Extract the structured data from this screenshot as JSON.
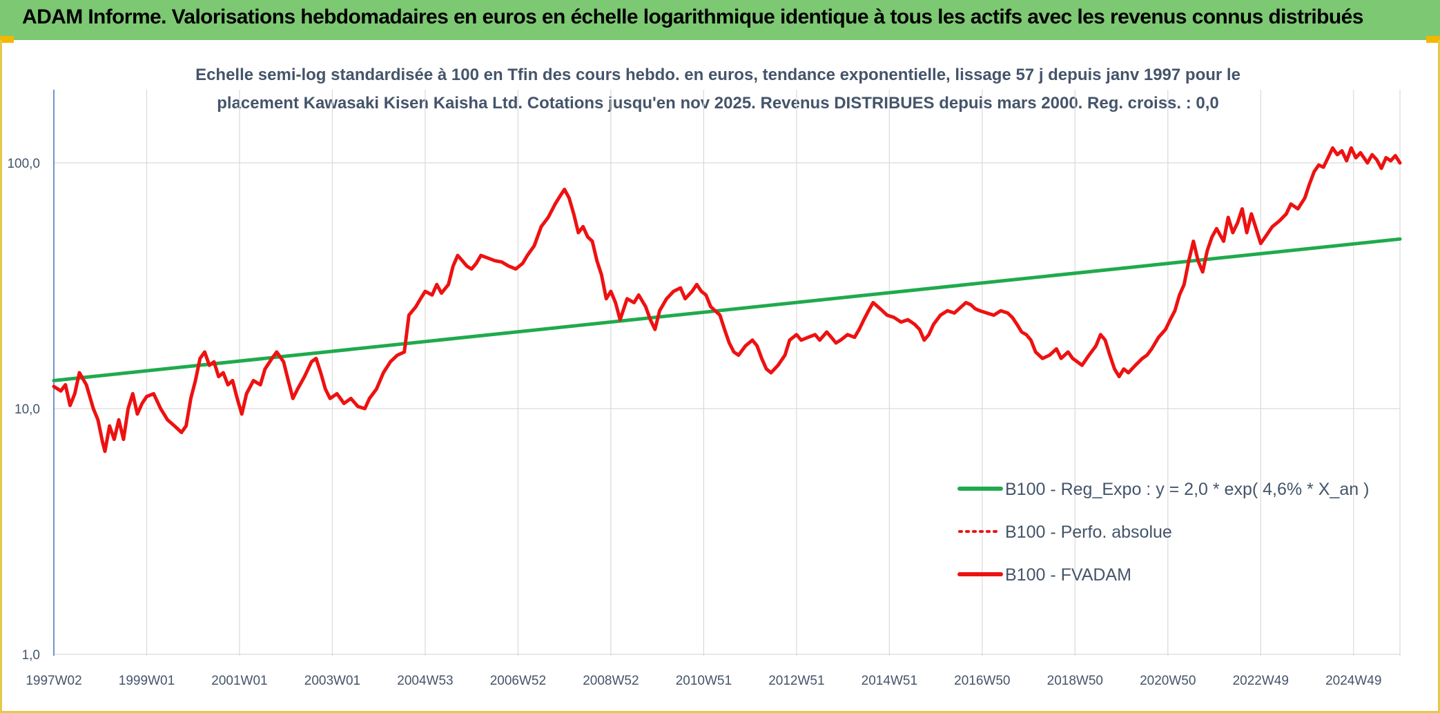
{
  "header": {
    "title": "ADAM Informe. Valorisations hebdomadaires en euros en échelle logarithmique identique à tous les actifs avec les revenus connus distribués"
  },
  "colors": {
    "banner": "#7dc873",
    "frame": "#e6c94a",
    "regression": "#1faa4d",
    "perf": "#ee1111",
    "grid": "#d9d9d9",
    "text": "#44546a"
  },
  "chart_data": {
    "type": "line",
    "title": "Echelle semi-log standardisée à 100 en Tfin des cours hebdo. en euros, tendance exponentielle, lissage 57 j depuis janv 1997 pour le",
    "subtitle": "placement Kawasaki Kisen Kaisha Ltd. Cotations jusqu'en nov 2025. Revenus DISTRIBUES depuis mars 2000. Reg. croiss. : 0,0",
    "y_scale": "log",
    "ylim": [
      1,
      200
    ],
    "xlim": [
      1997.0,
      2026.0
    ],
    "y_ticks": [
      {
        "value": 1,
        "label": "1,0"
      },
      {
        "value": 10,
        "label": "10,0"
      },
      {
        "value": 100,
        "label": "100,0"
      }
    ],
    "x_ticks": [
      {
        "value": 1997.0,
        "label": "1997W02"
      },
      {
        "value": 1999.0,
        "label": "1999W01"
      },
      {
        "value": 2001.0,
        "label": "2001W01"
      },
      {
        "value": 2003.0,
        "label": "2003W01"
      },
      {
        "value": 2005.0,
        "label": "2004W53"
      },
      {
        "value": 2007.0,
        "label": "2006W52"
      },
      {
        "value": 2009.0,
        "label": "2008W52"
      },
      {
        "value": 2011.0,
        "label": "2010W51"
      },
      {
        "value": 2013.0,
        "label": "2012W51"
      },
      {
        "value": 2015.0,
        "label": "2014W51"
      },
      {
        "value": 2017.0,
        "label": "2016W50"
      },
      {
        "value": 2019.0,
        "label": "2018W50"
      },
      {
        "value": 2021.0,
        "label": "2020W50"
      },
      {
        "value": 2023.0,
        "label": "2022W49"
      },
      {
        "value": 2025.0,
        "label": "2024W49"
      }
    ],
    "grid": true,
    "legend_position": "bottom-right",
    "series": [
      {
        "name": "B100 - Reg_Expo : y = 2,0 * exp( 4,6% *  X_an )",
        "color": "#1faa4d",
        "style": "solid",
        "points": [
          [
            1997.0,
            13.0
          ],
          [
            2026.0,
            49.0
          ]
        ]
      },
      {
        "name": "B100 - Perfo. absolue",
        "color": "#ee1111",
        "style": "dotted",
        "points": []
      },
      {
        "name": "B100 - FVADAM",
        "color": "#ee1111",
        "style": "solid",
        "points": [
          [
            1997.0,
            12.3
          ],
          [
            1997.15,
            11.8
          ],
          [
            1997.25,
            12.5
          ],
          [
            1997.35,
            10.3
          ],
          [
            1997.45,
            11.5
          ],
          [
            1997.55,
            14.0
          ],
          [
            1997.7,
            12.5
          ],
          [
            1997.85,
            10.0
          ],
          [
            1997.95,
            9.0
          ],
          [
            1998.05,
            7.3
          ],
          [
            1998.1,
            6.7
          ],
          [
            1998.2,
            8.5
          ],
          [
            1998.3,
            7.5
          ],
          [
            1998.4,
            9.0
          ],
          [
            1998.5,
            7.5
          ],
          [
            1998.6,
            10.0
          ],
          [
            1998.7,
            11.5
          ],
          [
            1998.8,
            9.5
          ],
          [
            1998.9,
            10.5
          ],
          [
            1999.0,
            11.2
          ],
          [
            1999.15,
            11.5
          ],
          [
            1999.3,
            10.0
          ],
          [
            1999.45,
            9.0
          ],
          [
            1999.6,
            8.5
          ],
          [
            1999.75,
            8.0
          ],
          [
            1999.85,
            8.5
          ],
          [
            1999.95,
            11.0
          ],
          [
            2000.05,
            13.0
          ],
          [
            2000.15,
            16.0
          ],
          [
            2000.25,
            17.0
          ],
          [
            2000.35,
            15.0
          ],
          [
            2000.45,
            15.5
          ],
          [
            2000.55,
            13.5
          ],
          [
            2000.65,
            14.0
          ],
          [
            2000.75,
            12.5
          ],
          [
            2000.85,
            13.0
          ],
          [
            2000.95,
            11.0
          ],
          [
            2001.05,
            9.5
          ],
          [
            2001.15,
            11.5
          ],
          [
            2001.3,
            13.0
          ],
          [
            2001.45,
            12.5
          ],
          [
            2001.55,
            14.5
          ],
          [
            2001.7,
            16.0
          ],
          [
            2001.8,
            17.0
          ],
          [
            2001.95,
            15.5
          ],
          [
            2002.05,
            13.0
          ],
          [
            2002.15,
            11.0
          ],
          [
            2002.25,
            12.0
          ],
          [
            2002.4,
            13.5
          ],
          [
            2002.55,
            15.5
          ],
          [
            2002.65,
            16.0
          ],
          [
            2002.75,
            14.0
          ],
          [
            2002.85,
            12.0
          ],
          [
            2002.95,
            11.0
          ],
          [
            2003.1,
            11.5
          ],
          [
            2003.25,
            10.5
          ],
          [
            2003.4,
            11.0
          ],
          [
            2003.55,
            10.2
          ],
          [
            2003.7,
            10.0
          ],
          [
            2003.8,
            11.0
          ],
          [
            2003.95,
            12.0
          ],
          [
            2004.1,
            14.0
          ],
          [
            2004.25,
            15.5
          ],
          [
            2004.4,
            16.5
          ],
          [
            2004.55,
            17.0
          ],
          [
            2004.65,
            24.0
          ],
          [
            2004.8,
            26.0
          ],
          [
            2004.9,
            28.0
          ],
          [
            2005.0,
            30.0
          ],
          [
            2005.15,
            29.0
          ],
          [
            2005.25,
            32.0
          ],
          [
            2005.35,
            29.5
          ],
          [
            2005.5,
            32.0
          ],
          [
            2005.6,
            38.0
          ],
          [
            2005.7,
            42.0
          ],
          [
            2005.8,
            40.0
          ],
          [
            2005.9,
            38.0
          ],
          [
            2006.0,
            37.0
          ],
          [
            2006.1,
            39.0
          ],
          [
            2006.2,
            42.0
          ],
          [
            2006.35,
            41.0
          ],
          [
            2006.5,
            40.0
          ],
          [
            2006.65,
            39.5
          ],
          [
            2006.8,
            38.0
          ],
          [
            2006.95,
            37.0
          ],
          [
            2007.1,
            39.0
          ],
          [
            2007.2,
            42.0
          ],
          [
            2007.35,
            46.0
          ],
          [
            2007.5,
            55.0
          ],
          [
            2007.65,
            60.0
          ],
          [
            2007.8,
            68.0
          ],
          [
            2007.9,
            73.0
          ],
          [
            2008.0,
            78.0
          ],
          [
            2008.1,
            72.0
          ],
          [
            2008.2,
            62.0
          ],
          [
            2008.3,
            52.0
          ],
          [
            2008.4,
            55.0
          ],
          [
            2008.5,
            50.0
          ],
          [
            2008.6,
            48.0
          ],
          [
            2008.7,
            40.0
          ],
          [
            2008.8,
            35.0
          ],
          [
            2008.9,
            28.0
          ],
          [
            2009.0,
            30.0
          ],
          [
            2009.1,
            27.0
          ],
          [
            2009.2,
            23.0
          ],
          [
            2009.35,
            28.0
          ],
          [
            2009.5,
            27.0
          ],
          [
            2009.6,
            29.0
          ],
          [
            2009.75,
            26.0
          ],
          [
            2009.85,
            23.0
          ],
          [
            2009.95,
            21.0
          ],
          [
            2010.05,
            25.0
          ],
          [
            2010.2,
            28.0
          ],
          [
            2010.35,
            30.0
          ],
          [
            2010.5,
            31.0
          ],
          [
            2010.6,
            28.0
          ],
          [
            2010.75,
            30.0
          ],
          [
            2010.85,
            32.0
          ],
          [
            2010.95,
            30.0
          ],
          [
            2011.05,
            29.0
          ],
          [
            2011.15,
            26.0
          ],
          [
            2011.25,
            25.0
          ],
          [
            2011.35,
            24.0
          ],
          [
            2011.45,
            21.0
          ],
          [
            2011.55,
            18.5
          ],
          [
            2011.65,
            17.0
          ],
          [
            2011.75,
            16.5
          ],
          [
            2011.9,
            18.0
          ],
          [
            2012.05,
            19.0
          ],
          [
            2012.15,
            18.0
          ],
          [
            2012.25,
            16.0
          ],
          [
            2012.35,
            14.5
          ],
          [
            2012.45,
            14.0
          ],
          [
            2012.6,
            15.0
          ],
          [
            2012.75,
            16.5
          ],
          [
            2012.85,
            19.0
          ],
          [
            2013.0,
            20.0
          ],
          [
            2013.1,
            19.0
          ],
          [
            2013.25,
            19.5
          ],
          [
            2013.4,
            20.0
          ],
          [
            2013.5,
            19.0
          ],
          [
            2013.65,
            20.5
          ],
          [
            2013.75,
            19.5
          ],
          [
            2013.85,
            18.5
          ],
          [
            2013.95,
            19.0
          ],
          [
            2014.1,
            20.0
          ],
          [
            2014.25,
            19.5
          ],
          [
            2014.35,
            21.0
          ],
          [
            2014.45,
            23.0
          ],
          [
            2014.55,
            25.0
          ],
          [
            2014.65,
            27.0
          ],
          [
            2014.75,
            26.0
          ],
          [
            2014.85,
            25.0
          ],
          [
            2014.95,
            24.0
          ],
          [
            2015.1,
            23.5
          ],
          [
            2015.25,
            22.5
          ],
          [
            2015.4,
            23.0
          ],
          [
            2015.55,
            22.0
          ],
          [
            2015.65,
            21.0
          ],
          [
            2015.75,
            19.0
          ],
          [
            2015.85,
            20.0
          ],
          [
            2015.95,
            22.0
          ],
          [
            2016.1,
            24.0
          ],
          [
            2016.25,
            25.0
          ],
          [
            2016.4,
            24.5
          ],
          [
            2016.55,
            26.0
          ],
          [
            2016.65,
            27.0
          ],
          [
            2016.75,
            26.5
          ],
          [
            2016.85,
            25.5
          ],
          [
            2016.95,
            25.0
          ],
          [
            2017.1,
            24.5
          ],
          [
            2017.25,
            24.0
          ],
          [
            2017.4,
            25.0
          ],
          [
            2017.55,
            24.5
          ],
          [
            2017.65,
            23.5
          ],
          [
            2017.75,
            22.0
          ],
          [
            2017.85,
            20.5
          ],
          [
            2017.95,
            20.0
          ],
          [
            2018.05,
            19.0
          ],
          [
            2018.15,
            17.0
          ],
          [
            2018.3,
            16.0
          ],
          [
            2018.45,
            16.5
          ],
          [
            2018.6,
            17.5
          ],
          [
            2018.7,
            16.0
          ],
          [
            2018.85,
            17.0
          ],
          [
            2018.95,
            16.0
          ],
          [
            2019.05,
            15.5
          ],
          [
            2019.15,
            15.0
          ],
          [
            2019.3,
            16.5
          ],
          [
            2019.45,
            18.0
          ],
          [
            2019.55,
            20.0
          ],
          [
            2019.65,
            19.0
          ],
          [
            2019.75,
            16.5
          ],
          [
            2019.85,
            14.5
          ],
          [
            2019.95,
            13.5
          ],
          [
            2020.05,
            14.5
          ],
          [
            2020.15,
            14.0
          ],
          [
            2020.3,
            15.0
          ],
          [
            2020.45,
            16.0
          ],
          [
            2020.55,
            16.5
          ],
          [
            2020.65,
            17.5
          ],
          [
            2020.8,
            19.5
          ],
          [
            2020.95,
            21.0
          ],
          [
            2021.05,
            23.0
          ],
          [
            2021.15,
            25.0
          ],
          [
            2021.25,
            29.0
          ],
          [
            2021.35,
            32.0
          ],
          [
            2021.45,
            40.0
          ],
          [
            2021.55,
            48.0
          ],
          [
            2021.65,
            40.0
          ],
          [
            2021.75,
            36.0
          ],
          [
            2021.85,
            44.0
          ],
          [
            2021.95,
            50.0
          ],
          [
            2022.05,
            54.0
          ],
          [
            2022.2,
            48.0
          ],
          [
            2022.3,
            60.0
          ],
          [
            2022.4,
            52.0
          ],
          [
            2022.5,
            57.0
          ],
          [
            2022.6,
            65.0
          ],
          [
            2022.7,
            52.0
          ],
          [
            2022.8,
            62.0
          ],
          [
            2022.9,
            54.0
          ],
          [
            2023.0,
            47.0
          ],
          [
            2023.1,
            50.0
          ],
          [
            2023.25,
            55.0
          ],
          [
            2023.4,
            58.0
          ],
          [
            2023.55,
            62.0
          ],
          [
            2023.65,
            68.0
          ],
          [
            2023.8,
            65.0
          ],
          [
            2023.95,
            72.0
          ],
          [
            2024.05,
            82.0
          ],
          [
            2024.15,
            92.0
          ],
          [
            2024.25,
            98.0
          ],
          [
            2024.35,
            96.0
          ],
          [
            2024.45,
            105.0
          ],
          [
            2024.55,
            115.0
          ],
          [
            2024.65,
            108.0
          ],
          [
            2024.75,
            112.0
          ],
          [
            2024.85,
            102.0
          ],
          [
            2024.95,
            115.0
          ],
          [
            2025.05,
            105.0
          ],
          [
            2025.15,
            110.0
          ],
          [
            2025.3,
            100.0
          ],
          [
            2025.4,
            108.0
          ],
          [
            2025.5,
            103.0
          ],
          [
            2025.6,
            95.0
          ],
          [
            2025.7,
            105.0
          ],
          [
            2025.8,
            102.0
          ],
          [
            2025.9,
            107.0
          ],
          [
            2026.0,
            100.0
          ]
        ]
      }
    ]
  }
}
